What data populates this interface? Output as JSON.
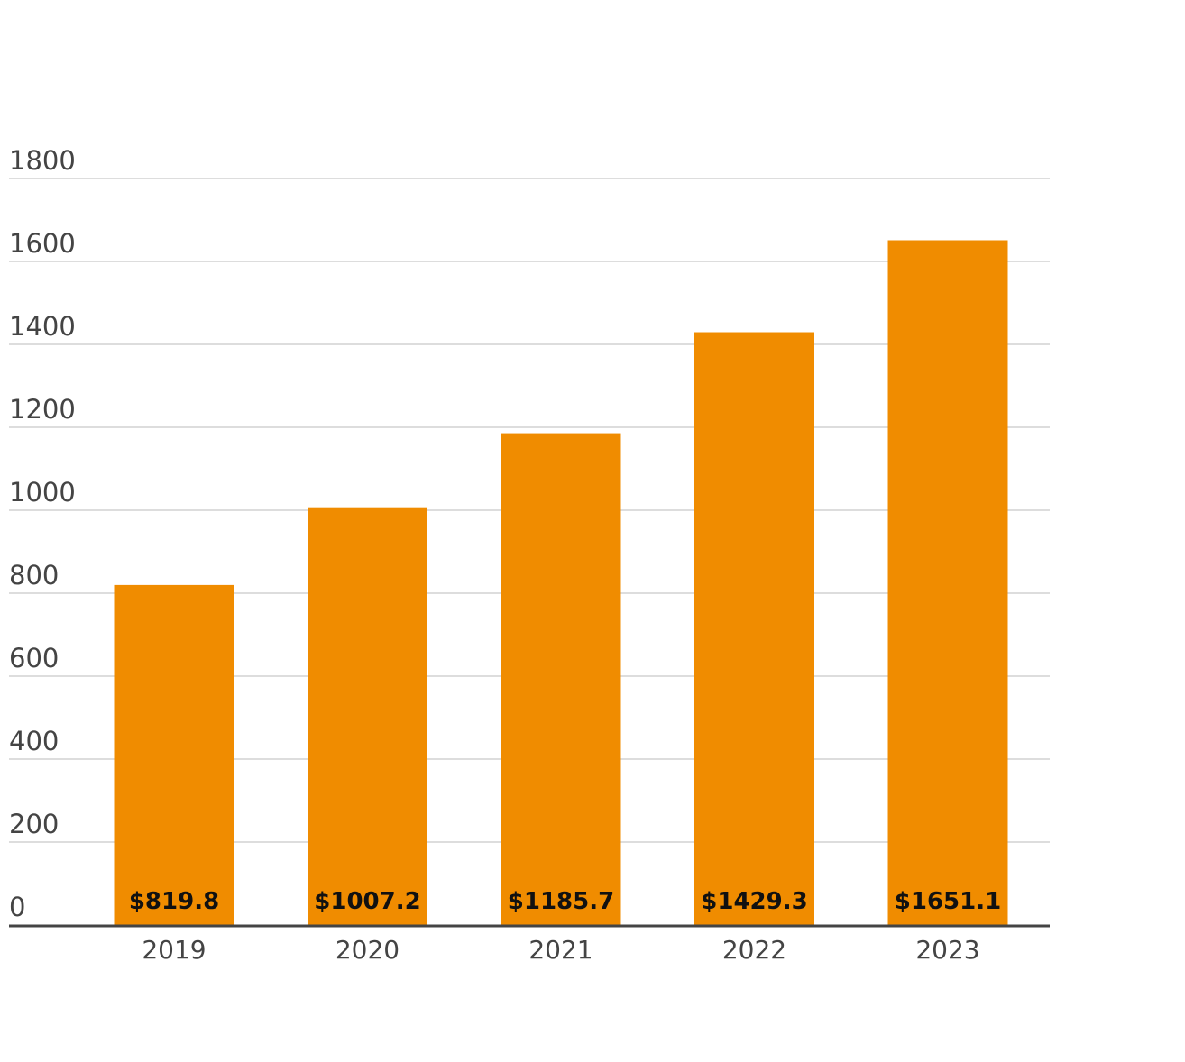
{
  "chart_data": {
    "type": "bar",
    "title": "",
    "xlabel": "",
    "ylabel": "",
    "categories": [
      "2019",
      "2020",
      "2021",
      "2022",
      "2023"
    ],
    "values": [
      819.8,
      1007.2,
      1185.7,
      1429.3,
      1651.1
    ],
    "value_labels": [
      "$819.8",
      "$1007.2",
      "$1185.7",
      "$1429.3",
      "$1651.1"
    ],
    "ylim": [
      0,
      1800
    ],
    "yticks": [
      0,
      200,
      400,
      600,
      800,
      1000,
      1200,
      1400,
      1600,
      1800
    ],
    "grid": true,
    "legend": "none",
    "bar_color": "#F08C00",
    "grid_color": "#dddddd",
    "axis_color": "#444444"
  }
}
